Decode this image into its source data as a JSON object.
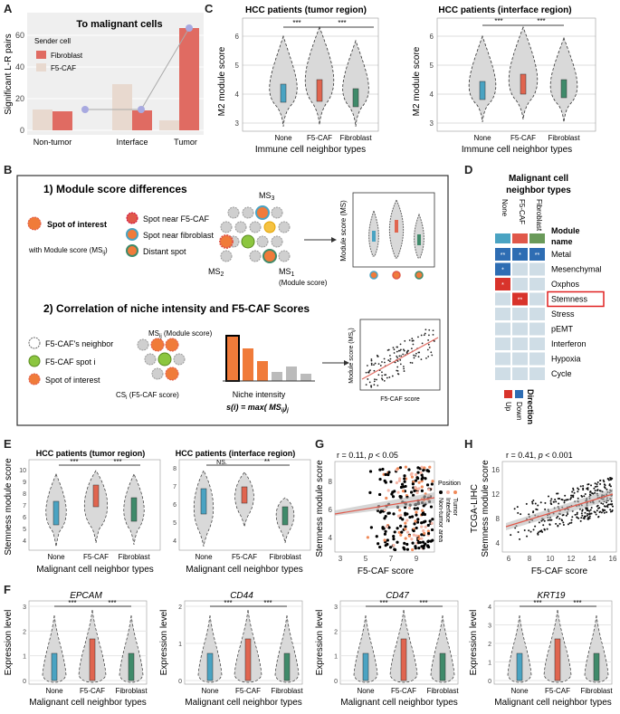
{
  "panel_labels": {
    "A": "A",
    "B": "B",
    "C": "C",
    "D": "D",
    "E": "E",
    "F": "F",
    "G": "G",
    "H": "H"
  },
  "colors": {
    "fibroblast": "#e06b62",
    "f5caf": "#e8d9cf",
    "none": "#4aa3c2",
    "f5caf_box": "#e0654f",
    "fib_box": "#3f8a6a",
    "violin": "#d9d9d9",
    "up": "#d8332b",
    "down": "#2e6db3",
    "orange": "#f07b3a",
    "green": "#8cc63f"
  },
  "panelA": {
    "title": "To malignant cells",
    "legend_title": "Sender cell",
    "legend": [
      "Fibroblast",
      "F5-CAF"
    ],
    "ylabel": "Significant L-R pairs",
    "ticks": [
      "0",
      "20",
      "40",
      "60"
    ],
    "categories": [
      "Non-tumor",
      "Interface",
      "Tumor"
    ]
  },
  "panelC": [
    {
      "title": "HCC patients (tumor region)",
      "ylabel": "M2 module score",
      "xlabel": "Immune cell neighbor types",
      "ticks": [
        "3",
        "4",
        "5",
        "6"
      ],
      "categories": [
        "None",
        "F5-CAF",
        "Fibroblast"
      ],
      "sig": [
        "***",
        "***"
      ]
    },
    {
      "title": "HCC patients (interface region)",
      "ylabel": "M2 module score",
      "xlabel": "Immune cell neighbor types",
      "ticks": [
        "3",
        "4",
        "5",
        "6"
      ],
      "categories": [
        "None",
        "F5-CAF",
        "Fibroblast"
      ],
      "sig": [
        "***",
        "***"
      ]
    }
  ],
  "panelB": {
    "s1_title": "1) Module score differences",
    "spot_interest": "Spot of interest",
    "with_ms": "with Module score (MS",
    "ms_sub": "ij",
    "legend1": [
      "Spot near F5-CAF",
      "Spot near fibroblast",
      "Distant spot"
    ],
    "ms3": "MS",
    "ms3_sub": "3",
    "ms2": "MS",
    "ms2_sub": "2",
    "ms1": "MS",
    "ms1_sub": "1",
    "ms1_note": "(Module score)",
    "ms_axis": "Module score (MS)",
    "s2_title": "2) Correlation of niche intensity and F5-CAF Scores",
    "legend2": [
      "F5-CAF's neighbor",
      "F5-CAF spot i",
      "Spot of interest"
    ],
    "msij": "MS",
    "msij_sub": "ij",
    "msij_note": " (Module score)",
    "csi": "CS",
    "csi_sub": "i",
    "csi_note": " (F5-CAF score)",
    "niche1": "Niche intensity",
    "niche2": "s(i) = max( MS",
    "niche2_sub": "ij",
    "niche2_end": ")",
    "niche2_subj": "j",
    "scatter_y": "Module score (MS",
    "scatter_ysub": "ij",
    "scatter_yend": ")",
    "scatter_x": "F5-CAF score"
  },
  "panelD": {
    "title1": "Malignant cell",
    "title2": "neighbor types",
    "cols": [
      "None",
      "F5-CAF",
      "Fibroblast"
    ],
    "module_name1": "Module",
    "module_name2": "name",
    "rows": [
      "Metal",
      "Mesenchymal",
      "Oxphos",
      "Stemness",
      "Stress",
      "pEMT",
      "Interferon",
      "Hypoxia",
      "Cycle"
    ],
    "marks": [
      [
        "**",
        "*",
        "**"
      ],
      [
        "*",
        "",
        ""
      ],
      [
        "*",
        "",
        ""
      ],
      [
        "",
        "**",
        ""
      ],
      [
        "",
        "",
        ""
      ],
      [
        "",
        "",
        ""
      ],
      [
        "",
        "",
        ""
      ],
      [
        "",
        "",
        ""
      ],
      [
        "",
        "",
        ""
      ]
    ],
    "dir": [
      [
        "down",
        "down",
        "down"
      ],
      [
        "down",
        "",
        ""
      ],
      [
        "up",
        "",
        ""
      ],
      [
        "",
        "up",
        ""
      ],
      [
        "",
        "",
        ""
      ],
      [
        "",
        "",
        ""
      ],
      [
        "",
        "",
        ""
      ],
      [
        "",
        "",
        ""
      ],
      [
        "",
        "",
        ""
      ]
    ],
    "legend_title": "Direction",
    "legend": [
      "Up",
      "Down"
    ]
  },
  "panelE": [
    {
      "title": "HCC patients (tumor region)",
      "ylabel": "Stemness module score",
      "xlabel": "Malignant cell neighbor types",
      "ticks": [
        "4",
        "5",
        "6",
        "7",
        "8",
        "9",
        "10"
      ],
      "categories": [
        "None",
        "F5-CAF",
        "Fibroblast"
      ],
      "sig": [
        "***",
        "***"
      ]
    },
    {
      "title": "HCC patients (interface region)",
      "ylabel": "",
      "xlabel": "Malignant cell neighbor types",
      "ticks": [
        "4",
        "5",
        "6",
        "7",
        "8"
      ],
      "categories": [
        "None",
        "F5-CAF",
        "Fibroblast"
      ],
      "sig": [
        "NS.",
        "**"
      ]
    }
  ],
  "panelG": {
    "stat": "r = 0.11, ",
    "stat_p": "p",
    "stat_end": " < 0.05",
    "ylabel": "Stemness module score",
    "xlabel": "F5-CAF score",
    "xticks": [
      "3",
      "5",
      "7",
      "9"
    ],
    "yticks": [
      "4",
      "6",
      "8"
    ],
    "legend_title": "Position",
    "legend": [
      "Non-tumor area",
      "Interface",
      "Tumor"
    ]
  },
  "panelH": {
    "stat": "r = 0.41, ",
    "stat_p": "p",
    "stat_end": " < 0.001",
    "ylabel1": "TCGA-LIHC",
    "ylabel2": "Stemness module score",
    "xlabel": "F5-CAF score",
    "xticks": [
      "6",
      "8",
      "10",
      "12",
      "14",
      "16"
    ],
    "yticks": [
      "4",
      "8",
      "12",
      "16"
    ]
  },
  "panelF": [
    {
      "gene": "EPCAM",
      "ticks": [
        "0",
        "1",
        "2",
        "3"
      ],
      "sig": [
        "***",
        "***"
      ]
    },
    {
      "gene": "CD44",
      "ticks": [
        "0",
        "1",
        "2"
      ],
      "sig": [
        "***",
        "***"
      ]
    },
    {
      "gene": "CD47",
      "ticks": [
        "0",
        "1",
        "2",
        "3"
      ],
      "sig": [
        "***",
        "***"
      ]
    },
    {
      "gene": "KRT19",
      "ticks": [
        "0",
        "1",
        "2",
        "3",
        "4"
      ],
      "sig": [
        "***",
        "***"
      ]
    }
  ],
  "panelF_common": {
    "ylabel": "Expression level",
    "xlabel": "Malignant cell neighbor types",
    "categories": [
      "None",
      "F5-CAF",
      "Fibroblast"
    ]
  }
}
